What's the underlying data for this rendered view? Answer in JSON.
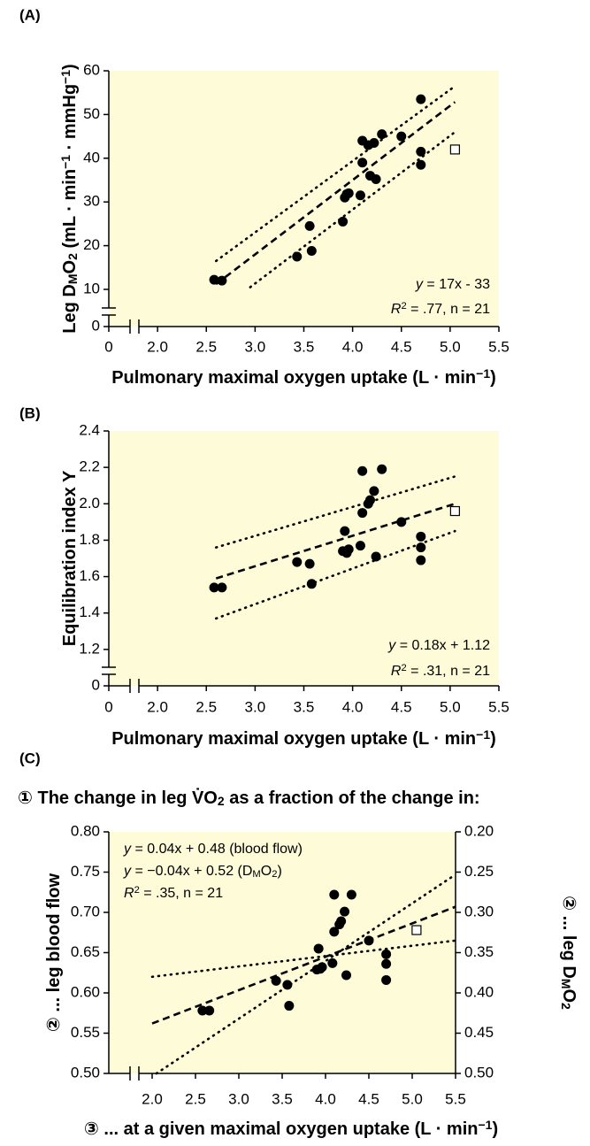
{
  "chart_data": [
    {
      "panel_label": "(A)",
      "type": "scatter",
      "ylabel": [
        "Leg D",
        "M",
        "O",
        "2",
        " (mL · min",
        "−1",
        " · mmHg",
        "−1",
        ")"
      ],
      "xlabel": [
        "Pulmonary maximal oxygen uptake (L · min",
        "−1",
        ")"
      ],
      "annotations": [
        [
          "y",
          " = 17x - 33"
        ],
        [
          "R",
          "2",
          " = .77, n = 21"
        ]
      ],
      "x": [
        2.58,
        2.66,
        3.43,
        3.56,
        3.58,
        3.9,
        3.92,
        3.96,
        4.08,
        4.1,
        4.1,
        4.16,
        4.18,
        4.22,
        4.24,
        4.3,
        4.5,
        4.7,
        4.7,
        4.7,
        3.94
      ],
      "values": [
        12.2,
        12,
        17.5,
        24.5,
        18.8,
        25.5,
        31,
        32,
        31.5,
        44,
        39,
        43,
        36,
        43.5,
        35.2,
        45.5,
        45,
        53.5,
        41.5,
        38.5,
        31.8
      ],
      "excluded_point": {
        "x": 5.05,
        "value": 42
      },
      "fit_line": {
        "x": [
          2.6,
          5.05
        ],
        "values": [
          11.2,
          52.85
        ]
      },
      "ci_lines": [
        {
          "x": [
            2.6,
            5.05
          ],
          "values": [
            16.5,
            56.5
          ]
        },
        {
          "x": [
            2.95,
            5.05
          ],
          "values": [
            10.5,
            46
          ]
        }
      ],
      "xlim": [
        0,
        5.5
      ],
      "x_break": [
        0,
        1.5
      ],
      "xticks": [
        0,
        {
          "value": 2,
          "label": "2.0"
        },
        2.5,
        {
          "value": 3,
          "label": "3.0"
        },
        3.5,
        {
          "value": 4,
          "label": "4.0"
        },
        4.5,
        {
          "value": 5,
          "label": "5.0"
        },
        5.5
      ],
      "ylim": [
        0,
        60
      ],
      "y_break": [
        0,
        1.5
      ],
      "yticks": [
        0,
        10,
        20,
        30,
        40,
        50,
        60
      ],
      "color": "#000000",
      "background": "#fdfbd8"
    },
    {
      "panel_label": "(B)",
      "type": "scatter",
      "ylabel": [
        "Equilibration index Y"
      ],
      "xlabel": [
        "Pulmonary maximal oxygen uptake (L · min",
        "−1",
        ")"
      ],
      "annotations": [
        [
          "y",
          " = 0.18x + 1.12"
        ],
        [
          "R",
          "2",
          " = .31, n = 21"
        ]
      ],
      "x": [
        2.58,
        2.66,
        3.43,
        3.56,
        3.58,
        3.9,
        3.92,
        3.96,
        4.08,
        4.1,
        4.1,
        4.16,
        4.18,
        4.22,
        4.24,
        4.3,
        4.5,
        4.7,
        4.7,
        4.7,
        3.94
      ],
      "values": [
        1.54,
        1.54,
        1.68,
        1.67,
        1.56,
        1.74,
        1.85,
        1.75,
        1.77,
        2.18,
        1.95,
        2.0,
        2.02,
        2.07,
        1.71,
        2.19,
        1.9,
        1.82,
        1.76,
        1.69,
        1.73
      ],
      "excluded_point": {
        "x": 5.05,
        "value": 1.96
      },
      "fit_line": {
        "x": [
          2.6,
          5.05
        ],
        "values": [
          1.59,
          2.0
        ]
      },
      "ci_lines": [
        {
          "x": [
            2.6,
            5.05
          ],
          "values": [
            1.76,
            2.15
          ]
        },
        {
          "x": [
            2.6,
            5.05
          ],
          "values": [
            1.37,
            1.85
          ]
        }
      ],
      "xlim": [
        0,
        5.5
      ],
      "x_break": [
        0,
        1.5
      ],
      "xticks": [
        0,
        {
          "value": 2,
          "label": "2.0"
        },
        2.5,
        {
          "value": 3,
          "label": "3.0"
        },
        3.5,
        {
          "value": 4,
          "label": "4.0"
        },
        4.5,
        {
          "value": 5,
          "label": "5.0"
        },
        5.5
      ],
      "ylim": [
        0,
        2.4
      ],
      "y_break": [
        0,
        1.0
      ],
      "yticks": [
        0,
        1.2,
        1.4,
        1.6,
        1.8,
        {
          "value": 2,
          "label": "2.0"
        },
        2.2,
        2.4
      ],
      "color": "#000000",
      "background": "#fdfbd8"
    },
    {
      "panel_label": "(C)",
      "type": "scatter",
      "title": [
        "① The change in leg V̇O",
        "2",
        " as a fraction of the change in:"
      ],
      "ylabel": [
        "② ... leg blood flow"
      ],
      "y2label": [
        "② ... leg D",
        "M",
        "O",
        "2"
      ],
      "xlabel": [
        "③ ... at a given maximal oxygen uptake (L · min",
        "−1",
        ")"
      ],
      "annotations": [
        [
          "y",
          " = 0.04x + 0.48 (blood flow)"
        ],
        [
          "y",
          " = −0.04x + 0.52 (D",
          "M",
          "O",
          "2",
          ")"
        ],
        [
          "R",
          "2",
          " = .35, n = 21"
        ]
      ],
      "x": [
        2.58,
        2.66,
        3.43,
        3.56,
        3.58,
        3.9,
        3.92,
        3.96,
        4.08,
        4.1,
        4.1,
        4.16,
        4.18,
        4.22,
        4.24,
        4.3,
        4.5,
        4.7,
        4.7,
        4.7,
        3.94
      ],
      "values": [
        0.578,
        0.578,
        0.615,
        0.61,
        0.584,
        0.629,
        0.655,
        0.632,
        0.637,
        0.722,
        0.676,
        0.685,
        0.689,
        0.701,
        0.622,
        0.722,
        0.665,
        0.648,
        0.636,
        0.616,
        0.63
      ],
      "excluded_point": {
        "x": 5.05,
        "value": 0.678
      },
      "fit_line": {
        "x": [
          2.0,
          5.5
        ],
        "values": [
          0.562,
          0.707
        ]
      },
      "ci_lines": [
        {
          "x": [
            2.0,
            5.5
          ],
          "values": [
            0.62,
            0.665
          ]
        },
        {
          "x": [
            2.05,
            5.5
          ],
          "values": [
            0.5,
            0.747
          ]
        }
      ],
      "xlim": [
        1.5,
        5.5
      ],
      "x_break": true,
      "xticks": [
        {
          "value": 2,
          "label": "2.0"
        },
        2.5,
        {
          "value": 3,
          "label": "3.0"
        },
        3.5,
        {
          "value": 4,
          "label": "4.0"
        },
        4.5,
        {
          "value": 5,
          "label": "5.0"
        },
        5.5
      ],
      "ylim": [
        0.5,
        0.8
      ],
      "yticks": [
        {
          "value": 0.5,
          "label": "0.50"
        },
        0.55,
        {
          "value": 0.6,
          "label": "0.60"
        },
        0.65,
        {
          "value": 0.7,
          "label": "0.70"
        },
        0.75,
        {
          "value": 0.8,
          "label": "0.80"
        }
      ],
      "y2lim": [
        0.5,
        0.2
      ],
      "y2ticks": [
        {
          "value": 0.2,
          "label": "0.20"
        },
        0.25,
        {
          "value": 0.3,
          "label": "0.30"
        },
        0.35,
        {
          "value": 0.4,
          "label": "0.40"
        },
        0.45,
        {
          "value": 0.5,
          "label": "0.50"
        }
      ],
      "color": "#000000",
      "background": "#fdfbd8"
    }
  ]
}
